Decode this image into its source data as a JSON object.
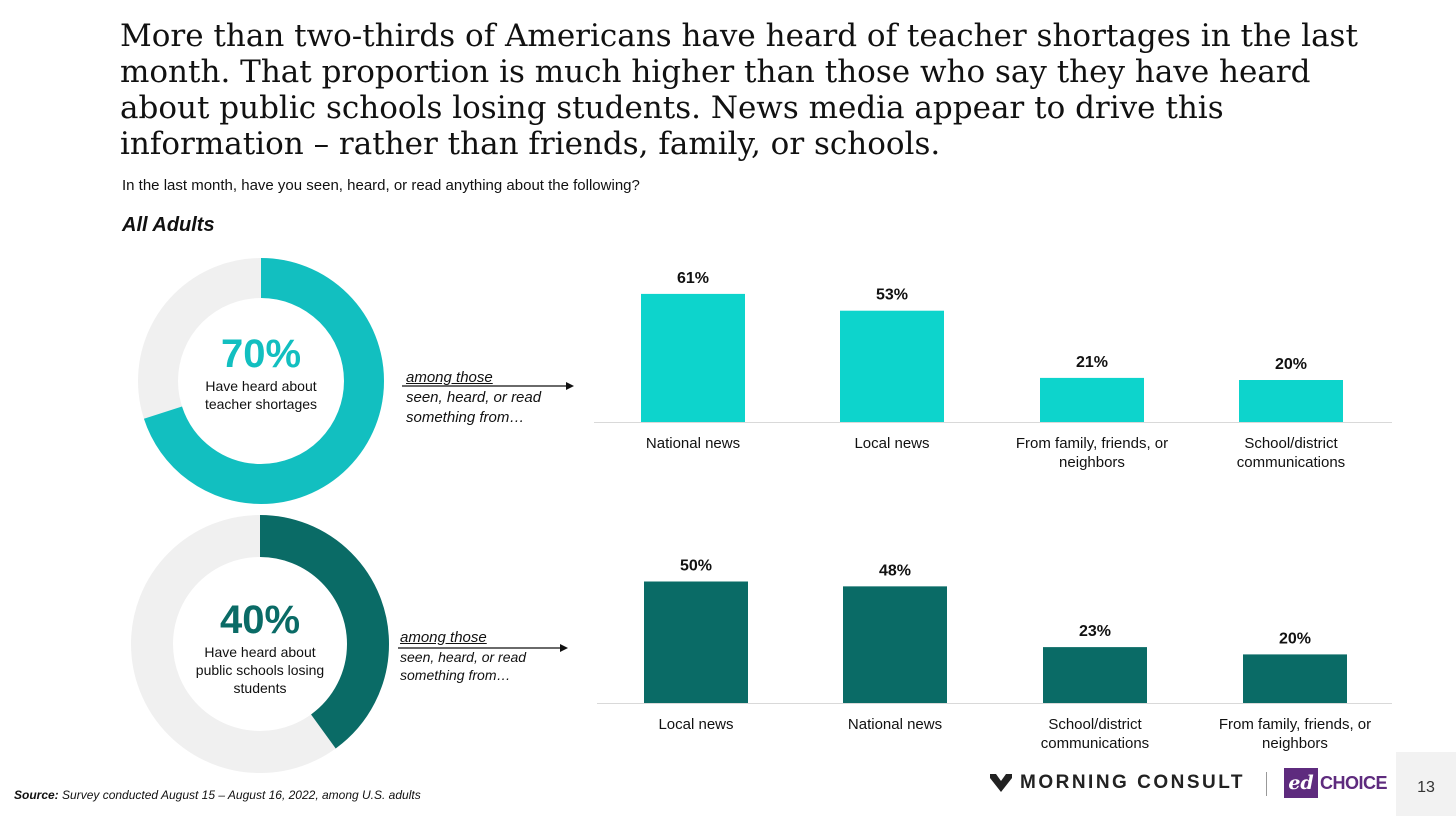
{
  "headline": "More than two-thirds of Americans have heard of teacher shortages in the last month. That proportion is much higher than those who say they have heard about public schools losing students. News media appear to drive this information – rather than friends, family, or schools.",
  "question": "In the last month, have you seen, heard, or read anything about the following?",
  "group_label": "All Adults",
  "donuts": [
    {
      "pct_label": "70%",
      "value": 70,
      "label_lines": [
        "Have heard about",
        "teacher shortages"
      ],
      "color": "#12bfc0",
      "track_color": "#f0f0f0"
    },
    {
      "pct_label": "40%",
      "value": 40,
      "label_lines": [
        "Have heard about",
        "public schools losing",
        "students"
      ],
      "color": "#0a6b66",
      "track_color": "#f0f0f0"
    }
  ],
  "among": {
    "line1": "among those",
    "line2": "seen, heard, or read",
    "line3": "something from…"
  },
  "chart_data": [
    {
      "type": "bar",
      "color": "#0dd4cc",
      "categories": [
        "National news",
        "Local news",
        "From family, friends, or neighbors",
        "School/district communications"
      ],
      "category_lines": [
        [
          "National news"
        ],
        [
          "Local news"
        ],
        [
          "From family, friends, or",
          "neighbors"
        ],
        [
          "School/district",
          "communications"
        ]
      ],
      "values": [
        61,
        53,
        21,
        20
      ],
      "value_labels": [
        "61%",
        "53%",
        "21%",
        "20%"
      ]
    },
    {
      "type": "bar",
      "color": "#0a6b66",
      "categories": [
        "Local news",
        "National news",
        "School/district communications",
        "From family, friends, or neighbors"
      ],
      "category_lines": [
        [
          "Local news"
        ],
        [
          "National news"
        ],
        [
          "School/district",
          "communications"
        ],
        [
          "From family, friends, or",
          "neighbors"
        ]
      ],
      "values": [
        50,
        48,
        23,
        20
      ],
      "value_labels": [
        "50%",
        "48%",
        "23%",
        "20%"
      ]
    }
  ],
  "source": {
    "prefix": "Source:",
    "text": "Survey conducted August 15 – August 16, 2022, among U.S. adults"
  },
  "logos": {
    "morning_consult": "MORNING CONSULT",
    "ed": "ed",
    "choice": "CHOICE"
  },
  "page_number": "13"
}
